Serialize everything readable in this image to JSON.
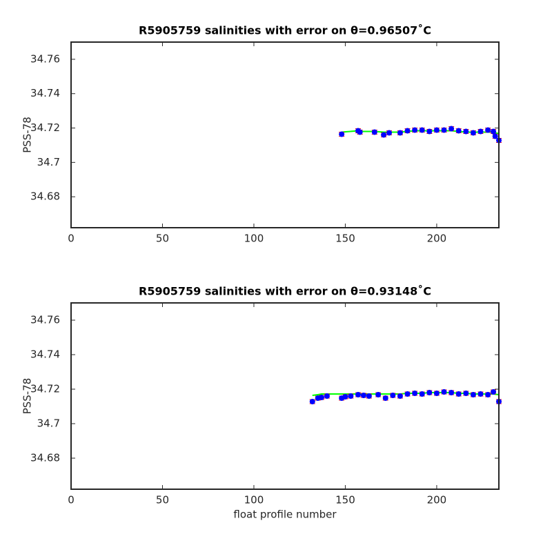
{
  "chart_data": [
    {
      "type": "scatter",
      "title": "R5905759 salinities with error on θ=0.96507˚C",
      "ylabel": "PSS-78",
      "xlim": [
        0,
        234
      ],
      "xticks": [
        0,
        50,
        100,
        150,
        200
      ],
      "ylim": [
        34.662,
        34.77
      ],
      "yticks": [
        34.68,
        34.7,
        34.72,
        34.74,
        34.76
      ],
      "x": [
        148,
        157,
        158,
        166,
        171,
        174,
        180,
        184,
        188,
        192,
        196,
        200,
        204,
        208,
        212,
        216,
        220,
        224,
        228,
        231,
        232,
        234
      ],
      "series": [
        {
          "color": "#00ff00",
          "marker": "line",
          "values": [
            34.7176,
            34.7184,
            34.718,
            34.718,
            34.7176,
            34.7176,
            34.7176,
            34.718,
            34.7184,
            34.7184,
            34.7184,
            34.7184,
            34.7184,
            34.7184,
            34.718,
            34.7176,
            34.7176,
            34.7176,
            34.7176,
            34.7176,
            34.7172,
            34.7168
          ]
        },
        {
          "color": "#0000ff",
          "marker": "dot",
          "error_color": "#ff0000",
          "values": [
            34.7164,
            34.7184,
            34.7176,
            34.7176,
            34.716,
            34.7172,
            34.7172,
            34.7184,
            34.7188,
            34.7188,
            34.718,
            34.7188,
            34.7188,
            34.7196,
            34.7184,
            34.718,
            34.7172,
            34.718,
            34.7188,
            34.718,
            34.7152,
            34.7128
          ],
          "errors": [
            0.0012,
            0.0012,
            0.0012,
            0.0012,
            0.0012,
            0.0012,
            0.0012,
            0.0012,
            0.0012,
            0.0012,
            0.0012,
            0.0012,
            0.0012,
            0.0012,
            0.0012,
            0.0012,
            0.0012,
            0.0012,
            0.0012,
            0.0012,
            0.0012,
            0.0012
          ]
        }
      ]
    },
    {
      "type": "scatter",
      "title": "R5905759 salinities with error on θ=0.93148˚C",
      "ylabel": "PSS-78",
      "xlabel": "float profile number",
      "xlim": [
        0,
        234
      ],
      "xticks": [
        0,
        50,
        100,
        150,
        200
      ],
      "ylim": [
        34.662,
        34.77
      ],
      "yticks": [
        34.68,
        34.7,
        34.72,
        34.74,
        34.76
      ],
      "x": [
        132,
        135,
        137,
        140,
        148,
        150,
        153,
        157,
        160,
        163,
        168,
        172,
        176,
        180,
        184,
        188,
        192,
        196,
        200,
        204,
        208,
        212,
        216,
        220,
        224,
        228,
        231,
        234
      ],
      "series": [
        {
          "color": "#00ff00",
          "marker": "line",
          "values": [
            34.7164,
            34.7168,
            34.7172,
            34.7172,
            34.7172,
            34.7172,
            34.7172,
            34.7172,
            34.7172,
            34.7172,
            34.7172,
            34.7172,
            34.7172,
            34.7172,
            34.7176,
            34.7176,
            34.7176,
            34.718,
            34.718,
            34.718,
            34.718,
            34.7176,
            34.7176,
            34.7172,
            34.7172,
            34.7172,
            34.7172,
            34.7168
          ]
        },
        {
          "color": "#0000ff",
          "marker": "dot",
          "error_color": "#ff0000",
          "values": [
            34.7128,
            34.7148,
            34.7152,
            34.716,
            34.7148,
            34.7156,
            34.716,
            34.7168,
            34.7164,
            34.716,
            34.7168,
            34.7148,
            34.7164,
            34.716,
            34.7172,
            34.7176,
            34.7172,
            34.718,
            34.7176,
            34.7184,
            34.718,
            34.7172,
            34.7176,
            34.7168,
            34.7172,
            34.7168,
            34.7184,
            34.7128
          ],
          "errors": [
            0.0012,
            0.0012,
            0.0012,
            0.0012,
            0.0012,
            0.0012,
            0.0012,
            0.0012,
            0.0012,
            0.0012,
            0.0012,
            0.0012,
            0.0012,
            0.0012,
            0.0012,
            0.0012,
            0.0012,
            0.0012,
            0.0012,
            0.0012,
            0.0012,
            0.0012,
            0.0012,
            0.0012,
            0.0012,
            0.0012,
            0.0012,
            0.0012
          ]
        }
      ]
    }
  ]
}
